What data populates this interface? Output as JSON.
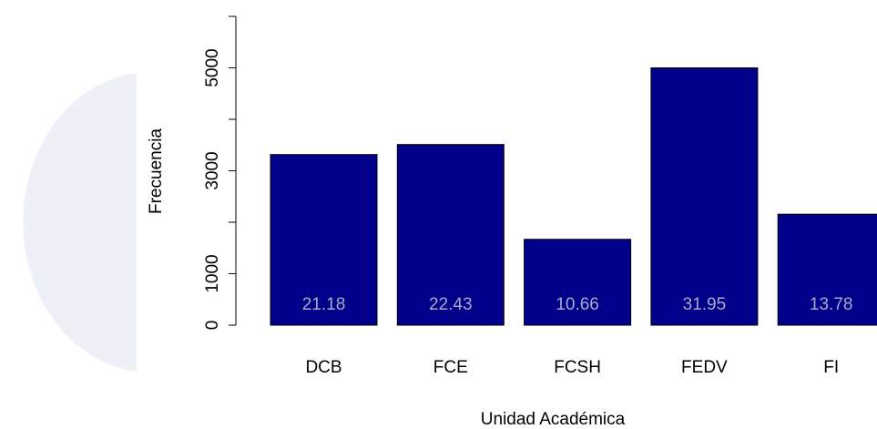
{
  "chart_data": {
    "type": "bar",
    "xlabel": "Unidad Académica",
    "ylabel": "Frecuencia",
    "categories": [
      "DCB",
      "FCE",
      "FCSH",
      "FEDV",
      "FI"
    ],
    "values": [
      3315,
      3510,
      1668,
      5000,
      2156
    ],
    "value_labels": [
      "21.18",
      "22.43",
      "10.66",
      "31.95",
      "13.78"
    ],
    "color": "#00008b",
    "ylim": [
      0,
      6000
    ],
    "yticks": [
      0,
      1000,
      3000,
      5000
    ],
    "yticks_unlabeled": [
      2000,
      4000,
      6000
    ]
  }
}
